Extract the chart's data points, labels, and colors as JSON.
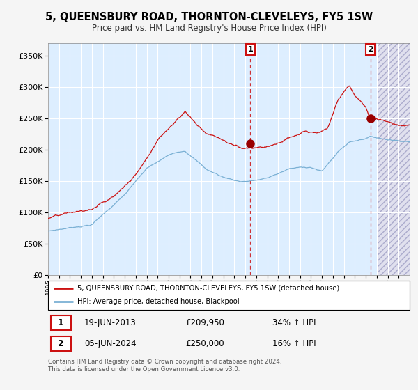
{
  "title": "5, QUEENSBURY ROAD, THORNTON-CLEVELEYS, FY5 1SW",
  "subtitle": "Price paid vs. HM Land Registry's House Price Index (HPI)",
  "legend_line1": "5, QUEENSBURY ROAD, THORNTON-CLEVELEYS, FY5 1SW (detached house)",
  "legend_line2": "HPI: Average price, detached house, Blackpool",
  "sale1_date": "19-JUN-2013",
  "sale1_price": "£209,950",
  "sale1_hpi": "34% ↑ HPI",
  "sale2_date": "05-JUN-2024",
  "sale2_price": "£250,000",
  "sale2_hpi": "16% ↑ HPI",
  "footer": "Contains HM Land Registry data © Crown copyright and database right 2024.\nThis data is licensed under the Open Government Licence v3.0.",
  "hpi_color": "#7ab0d4",
  "price_color": "#cc1111",
  "ylim": [
    0,
    370000
  ],
  "yticks": [
    0,
    50000,
    100000,
    150000,
    200000,
    250000,
    300000,
    350000
  ],
  "fig_bg": "#f5f5f5",
  "plot_bg": "#ddeeff",
  "hatch_bg": "#d8d8e8",
  "sale1_year": 2013.46,
  "sale2_year": 2024.42,
  "hatch_start": 2025.0,
  "xmin": 1995,
  "xmax": 2028
}
